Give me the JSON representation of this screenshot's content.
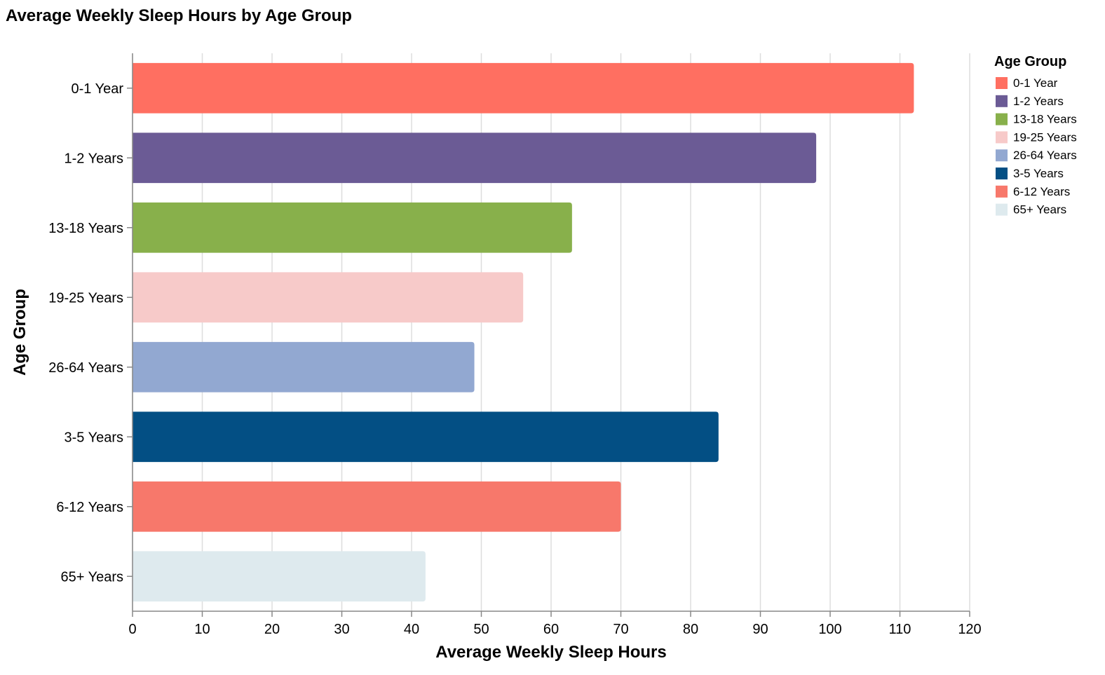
{
  "chart_data": {
    "type": "bar",
    "orientation": "horizontal",
    "title": "Average Weekly Sleep Hours by Age Group",
    "xlabel": "Average Weekly Sleep Hours",
    "ylabel": "Age Group",
    "xlim": [
      0,
      120
    ],
    "x_ticks": [
      0,
      10,
      20,
      30,
      40,
      50,
      60,
      70,
      80,
      90,
      100,
      110,
      120
    ],
    "grid": true,
    "categories": [
      "0-1 Year",
      "1-2 Years",
      "13-18 Years",
      "19-25 Years",
      "26-64 Years",
      "3-5 Years",
      "6-12 Years",
      "65+ Years"
    ],
    "values": [
      112,
      98,
      63,
      56,
      49,
      84,
      70,
      42
    ],
    "colors": [
      "#ff6f61",
      "#6b5b95",
      "#88b04b",
      "#f7cac9",
      "#92a8d1",
      "#034f84",
      "#f7786b",
      "#deeaee"
    ],
    "legend": {
      "title": "Age Group",
      "position": "top-right",
      "entries": [
        "0-1 Year",
        "1-2 Years",
        "13-18 Years",
        "19-25 Years",
        "26-64 Years",
        "3-5 Years",
        "6-12 Years",
        "65+ Years"
      ]
    }
  }
}
